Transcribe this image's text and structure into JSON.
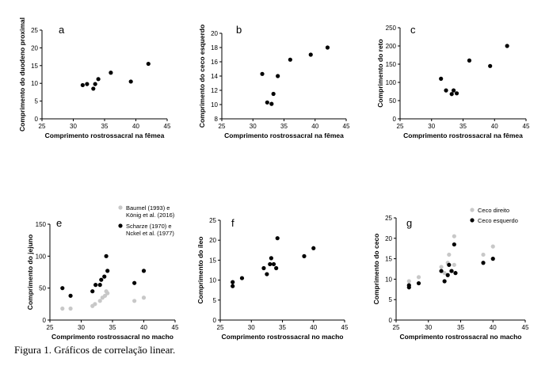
{
  "caption": "Figura 1. Gráficos de correlação linear.",
  "chart_data": [
    {
      "type": "scatter",
      "panel": "a",
      "xlabel": "Comprimento rostrossacral na fêmea",
      "ylabel": "Comprimento do duodeno proximal",
      "xlim": [
        25,
        45
      ],
      "ylim": [
        0,
        25
      ],
      "xticks": [
        25,
        30,
        35,
        40,
        45
      ],
      "yticks": [
        0,
        5,
        10,
        15,
        20,
        25
      ],
      "series": [
        {
          "name": "black",
          "color": "#000000",
          "x": [
            31.5,
            32.2,
            33.2,
            33.5,
            34.0,
            36.0,
            39.2,
            42.0
          ],
          "y": [
            9.5,
            9.8,
            8.5,
            9.8,
            11.2,
            13.0,
            10.5,
            15.5
          ]
        }
      ]
    },
    {
      "type": "scatter",
      "panel": "b",
      "xlabel": "Comprimento rostrossacral na fêmea",
      "ylabel": "Comprimento do ceco esquerdo",
      "xlim": [
        25,
        45
      ],
      "ylim": [
        8,
        20
      ],
      "xticks": [
        25,
        30,
        35,
        40,
        45
      ],
      "yticks": [
        8,
        10,
        12,
        14,
        16,
        18,
        20
      ],
      "series": [
        {
          "name": "black",
          "color": "#000000",
          "x": [
            31.5,
            32.3,
            33.0,
            33.3,
            34.0,
            36.0,
            39.3,
            42.0
          ],
          "y": [
            14.3,
            10.3,
            10.1,
            11.5,
            14.0,
            16.3,
            17.0,
            18.0
          ]
        }
      ]
    },
    {
      "type": "scatter",
      "panel": "c",
      "xlabel": "Comprimento rostrossacral na fêmea",
      "ylabel": "Comprimento do reto",
      "xlim": [
        25,
        45
      ],
      "ylim": [
        0,
        250
      ],
      "xticks": [
        25,
        30,
        35,
        40,
        45
      ],
      "yticks": [
        0,
        50,
        100,
        150,
        200,
        250
      ],
      "series": [
        {
          "name": "black",
          "color": "#000000",
          "x": [
            31.5,
            32.3,
            33.2,
            33.5,
            34.0,
            36.0,
            39.3,
            42.0
          ],
          "y": [
            110,
            78,
            68,
            78,
            70,
            160,
            145,
            200
          ]
        }
      ]
    },
    {
      "type": "scatter",
      "panel": "e",
      "xlabel": "Comprimento rostrossacral no macho",
      "ylabel": "Comprimento do jejuno",
      "xlim": [
        25,
        45
      ],
      "ylim": [
        0,
        150
      ],
      "xticks": [
        25,
        30,
        35,
        40,
        45
      ],
      "yticks": [
        0,
        50,
        100,
        150
      ],
      "legend": [
        {
          "label": "Baumel (1993) e",
          "label2": "König et al. (2016)",
          "color": "#c8c8c8"
        },
        {
          "label": "Scharze (1970) e",
          "label2": "Nckel et al. (1977)",
          "color": "#000000"
        }
      ],
      "series": [
        {
          "name": "Baumel (1993) e König et al. (2016)",
          "color": "#c8c8c8",
          "x": [
            27.0,
            28.3,
            31.8,
            32.2,
            33.0,
            33.4,
            33.8,
            34.0,
            34.2,
            38.5,
            40.0
          ],
          "y": [
            18,
            18,
            22,
            25,
            30,
            35,
            38,
            45,
            42,
            30,
            35
          ]
        },
        {
          "name": "Scharze (1970) e Nckel et al. (1977)",
          "color": "#000000",
          "x": [
            27.0,
            28.3,
            31.8,
            32.3,
            33.0,
            33.2,
            33.7,
            34.0,
            34.2,
            38.5,
            40.0
          ],
          "y": [
            50,
            38,
            45,
            55,
            55,
            63,
            68,
            100,
            77,
            58,
            77
          ]
        }
      ]
    },
    {
      "type": "scatter",
      "panel": "f",
      "xlabel": "Comprimento rostrossacral no macho",
      "ylabel": "Comprimento do íleo",
      "xlim": [
        25,
        45
      ],
      "ylim": [
        0,
        25
      ],
      "xticks": [
        25,
        30,
        35,
        40,
        45
      ],
      "yticks": [
        0,
        5,
        10,
        15,
        20,
        25
      ],
      "series": [
        {
          "name": "black",
          "color": "#000000",
          "x": [
            27.0,
            27.0,
            28.5,
            32.0,
            32.5,
            33.0,
            33.2,
            33.6,
            34.0,
            34.2,
            38.5,
            40.0
          ],
          "y": [
            8.5,
            9.5,
            10.5,
            13.0,
            11.5,
            14.0,
            15.5,
            14.0,
            13.0,
            20.5,
            16.0,
            18.0
          ]
        }
      ]
    },
    {
      "type": "scatter",
      "panel": "g",
      "xlabel": "Comprimento rostrossacral no macho",
      "ylabel": "Comprimento do ceco",
      "xlim": [
        25,
        45
      ],
      "ylim": [
        0,
        25
      ],
      "xticks": [
        25,
        30,
        35,
        40,
        45
      ],
      "yticks": [
        0,
        5,
        10,
        15,
        20,
        25
      ],
      "legend": [
        {
          "label": "Ceco direito",
          "label2": "",
          "color": "#c8c8c8"
        },
        {
          "label": "Ceco esquerdo",
          "label2": "",
          "color": "#000000"
        }
      ],
      "series": [
        {
          "name": "Ceco direito",
          "color": "#c8c8c8",
          "x": [
            27.0,
            28.5,
            32.0,
            32.5,
            33.0,
            33.2,
            33.5,
            34.0,
            34.0,
            38.5,
            40.0
          ],
          "y": [
            9.5,
            10.5,
            13.0,
            11.5,
            14.0,
            16.0,
            12.0,
            20.5,
            13.5,
            16.0,
            18.0
          ]
        },
        {
          "name": "Ceco esquerdo",
          "color": "#000000",
          "x": [
            27.0,
            27.0,
            28.5,
            32.0,
            32.5,
            33.0,
            33.2,
            33.6,
            34.0,
            34.2,
            38.5,
            40.0
          ],
          "y": [
            8.0,
            8.5,
            9.0,
            12.0,
            9.5,
            11.0,
            13.5,
            12.0,
            18.5,
            11.5,
            14.0,
            15.0
          ]
        }
      ]
    }
  ]
}
